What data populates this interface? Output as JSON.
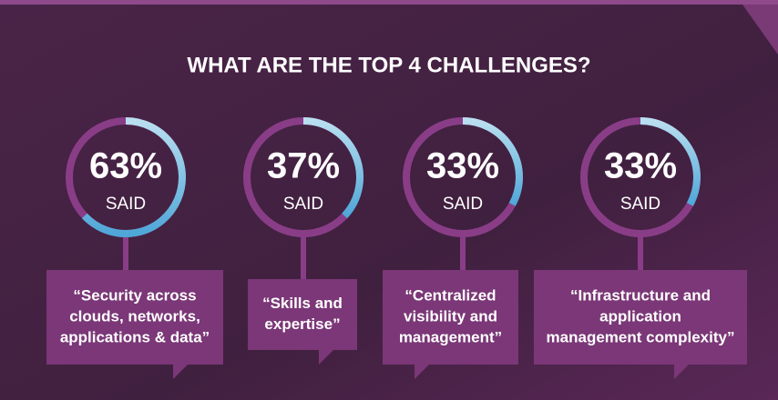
{
  "chart_data": {
    "type": "ring",
    "title": "WHAT ARE THE TOP 4 CHALLENGES?",
    "sublabel": "SAID",
    "categories": [
      [
        "“Security across",
        "clouds, networks,",
        "applications & data”"
      ],
      [
        "“Skills and",
        "expertise”"
      ],
      [
        "“Centralized",
        "visibility and",
        "management”"
      ],
      [
        "“Infrastructure and",
        "application",
        "management complexity”"
      ]
    ],
    "values": [
      63,
      37,
      33,
      33
    ],
    "value_labels": [
      "63%",
      "37%",
      "33%",
      "33%"
    ],
    "ylim": [
      0,
      100
    ],
    "color": "#6ab8e0"
  }
}
